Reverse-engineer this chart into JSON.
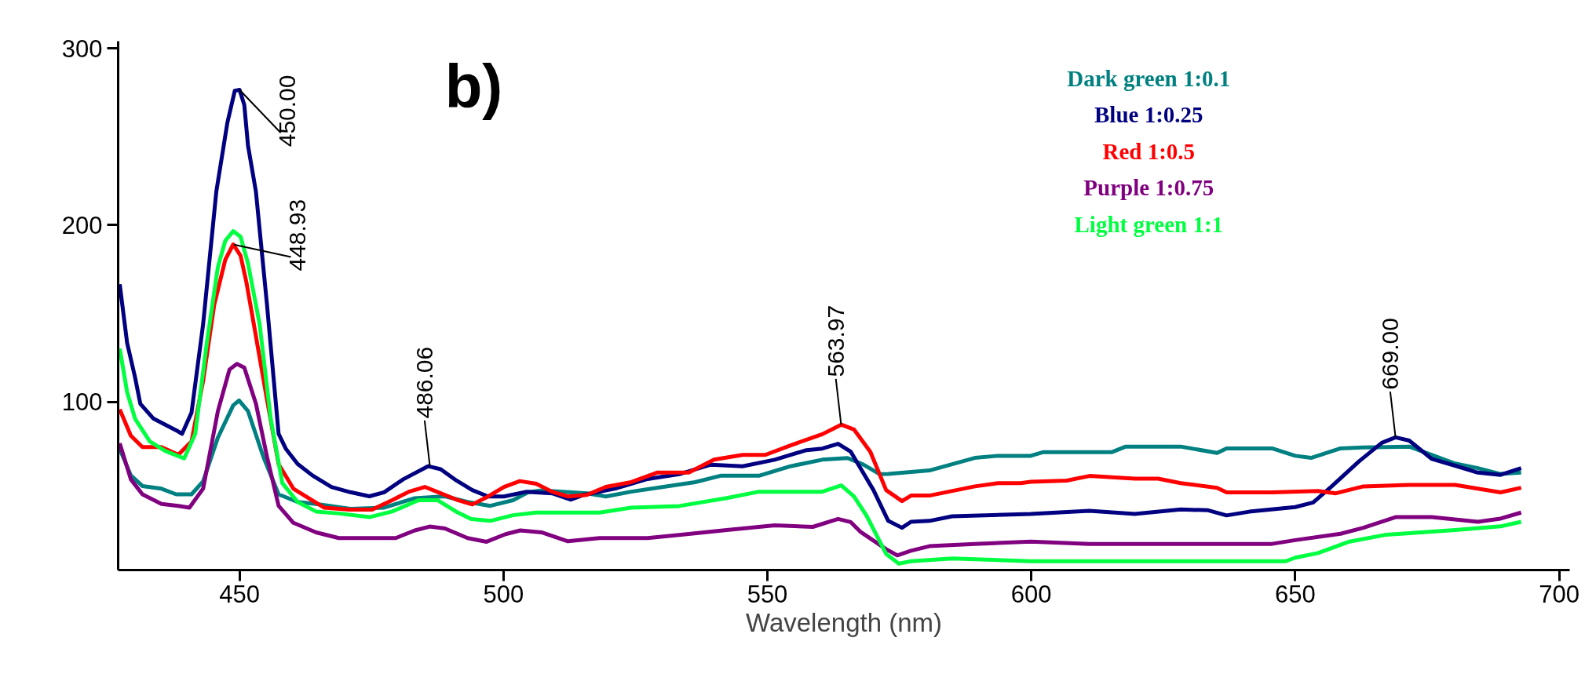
{
  "chart_data": {
    "type": "line",
    "xlabel": "Wavelength (nm)",
    "xlim": [
      427,
      702
    ],
    "ylim": [
      5,
      304
    ],
    "xticks": [
      450,
      500,
      550,
      600,
      650,
      700
    ],
    "yticks": [
      100,
      200,
      300
    ],
    "grid": false,
    "legend": "top",
    "annotations": [
      "b)",
      {
        "text": "450.00",
        "x": 450,
        "y": 276.5
      },
      {
        "text": "448.93",
        "x": 448.93,
        "y": 189
      },
      {
        "text": "486.06",
        "x": 486.06,
        "y": 63.7
      },
      {
        "text": "563.97",
        "x": 563.97,
        "y": 87.2
      },
      {
        "text": "669.00",
        "x": 669,
        "y": 80
      }
    ],
    "series": [
      {
        "name": "Dark green 1:0.1",
        "color": "#008080",
        "x": [
          427.3,
          429.4,
          431.6,
          435.2,
          438.0,
          440.9,
          443.1,
          445.9,
          448.8,
          449.9,
          451.6,
          454.5,
          457.4,
          461.0,
          464.5,
          471.0,
          477.4,
          483.2,
          488.9,
          493.2,
          497.5,
          501.8,
          504.7,
          507.2,
          515.8,
          519.4,
          524.2,
          530.3,
          536.3,
          541.1,
          548.4,
          554.4,
          560.4,
          565.2,
          568.2,
          571.3,
          572.9,
          580.7,
          589.3,
          593.7,
          599.9,
          602.3,
          615.3,
          617.9,
          628.3,
          635.2,
          637.0,
          645.6,
          650.0,
          653.0,
          658.6,
          662.9,
          671.6,
          680.3,
          684.6,
          688.9,
          692.8
        ],
        "values": [
          73.5,
          58.5,
          52.5,
          51,
          47.8,
          47.8,
          55.2,
          79.9,
          98.1,
          100.9,
          94.9,
          69.1,
          47.8,
          43.5,
          42.4,
          39.6,
          40.3,
          45.6,
          46.7,
          43.5,
          41.3,
          44.5,
          49,
          50,
          48.4,
          46.6,
          49.3,
          52,
          54.7,
          58.3,
          58.3,
          63.7,
          67.4,
          68.3,
          64.6,
          59.2,
          59.3,
          61.3,
          68.4,
          69.6,
          69.6,
          71.7,
          71.7,
          74.8,
          74.8,
          71.2,
          73.8,
          73.8,
          69.6,
          68.4,
          73.8,
          74.3,
          74.8,
          65.2,
          62.6,
          59.3,
          60.1
        ]
      },
      {
        "name": "Blue 1:0.25",
        "color": "#000080",
        "x": [
          427.3,
          428.7,
          430.2,
          431.2,
          433.7,
          438.0,
          439.1,
          440.9,
          443.1,
          445.6,
          447.7,
          449.1,
          450.0,
          450.9,
          451.6,
          453.1,
          455.2,
          457.4,
          458.8,
          461.0,
          463.8,
          467.4,
          471.0,
          474.6,
          477.4,
          481.0,
          485.7,
          488.1,
          491.1,
          494.1,
          497.1,
          500.1,
          504.4,
          509.2,
          512.8,
          515.2,
          521.2,
          527.3,
          533.3,
          539.3,
          545.3,
          551.4,
          557.4,
          560.4,
          563.4,
          565.8,
          567.6,
          570.1,
          572.9,
          575.5,
          577.2,
          580.7,
          585.0,
          599.9,
          611.0,
          619.6,
          628.3,
          633.5,
          637.0,
          641.3,
          650.0,
          653.4,
          656.9,
          662.1,
          666.4,
          669.0,
          671.6,
          675.9,
          680.3,
          684.6,
          688.9,
          692.8
        ],
        "values": [
          166.6,
          133.4,
          114,
          99,
          90.6,
          84,
          82,
          94,
          144,
          219,
          258,
          276,
          276.5,
          268,
          245,
          219,
          155,
          82,
          73.4,
          65,
          58.5,
          52,
          49,
          46.7,
          49,
          56.3,
          63.7,
          62,
          55.6,
          50.2,
          46.6,
          46.6,
          49.3,
          48.4,
          44.8,
          47.5,
          51.1,
          56.5,
          59.2,
          64.6,
          63.7,
          67.4,
          72.8,
          73.7,
          76.4,
          71.9,
          62.8,
          50.2,
          32.8,
          28.9,
          32.3,
          32.8,
          35.4,
          36.7,
          38.5,
          36.7,
          39.3,
          38.8,
          35.9,
          38.0,
          40.6,
          43.2,
          52.3,
          66.5,
          76.9,
          80.0,
          78.2,
          67.8,
          64.0,
          60.1,
          58.8,
          62.6
        ]
      },
      {
        "name": "Red 1:0.5",
        "color": "#ff0000",
        "x": [
          427.3,
          429.4,
          431.6,
          435.2,
          438.4,
          440.9,
          443.1,
          445.2,
          447.3,
          448.8,
          450.2,
          451.3,
          452.7,
          455.2,
          457.4,
          460.2,
          463.1,
          466.0,
          470.8,
          475.1,
          478.9,
          482.1,
          485.1,
          488.1,
          491.1,
          494.1,
          497.1,
          500.1,
          503.1,
          506.2,
          509.2,
          512.2,
          515.8,
          519.4,
          524.2,
          529.1,
          535.1,
          539.9,
          545.3,
          549.6,
          554.4,
          560.4,
          564.0,
          566.4,
          569.5,
          572.5,
          575.5,
          577.2,
          580.7,
          589.3,
          593.7,
          598.0,
          599.9,
          606.7,
          611.0,
          619.6,
          624.0,
          628.3,
          635.2,
          637.0,
          645.6,
          654.3,
          657.7,
          662.9,
          671.6,
          680.3,
          684.6,
          688.9,
          692.8
        ],
        "values": [
          95.9,
          81,
          74.5,
          74.5,
          70.2,
          77.7,
          112,
          154.9,
          180.5,
          189.1,
          182.7,
          167.7,
          144.1,
          101.3,
          64.9,
          51,
          45.6,
          40.3,
          39.2,
          39.2,
          44.5,
          49.3,
          52,
          48.4,
          44.8,
          42.1,
          46.6,
          52,
          55.3,
          53.8,
          49.3,
          46.6,
          47.5,
          52,
          54.7,
          60.1,
          60.1,
          67.4,
          70.1,
          70.1,
          75.5,
          81.8,
          87.2,
          84.5,
          71.9,
          50.2,
          44.0,
          47.1,
          47.1,
          52.3,
          54.1,
          54.1,
          54.9,
          55.6,
          58.2,
          56.7,
          56.7,
          54.1,
          51.5,
          48.9,
          48.9,
          49.7,
          48.4,
          52.3,
          53.1,
          53.1,
          51.0,
          48.9,
          51.5
        ]
      },
      {
        "name": "Purple 1:0.75",
        "color": "#800080",
        "x": [
          427.3,
          429.4,
          431.6,
          435.2,
          438.4,
          440.5,
          443.1,
          445.9,
          448.1,
          449.5,
          450.9,
          453.1,
          455.2,
          457.4,
          460.2,
          464.5,
          468.8,
          474.6,
          479.6,
          483.2,
          486.0,
          488.9,
          493.2,
          496.8,
          500.4,
          503.2,
          507.2,
          512.2,
          518.2,
          527.3,
          533.3,
          542.3,
          551.4,
          558.6,
          563.4,
          565.8,
          567.6,
          572.5,
          574.6,
          577.2,
          580.7,
          589.3,
          599.9,
          611.0,
          628.3,
          645.6,
          650.0,
          658.6,
          662.9,
          669.0,
          675.9,
          684.6,
          688.9,
          692.8
        ],
        "values": [
          76.7,
          56.3,
          47.8,
          42.4,
          41.3,
          40.3,
          51,
          94.9,
          118.4,
          121.6,
          119.5,
          99.1,
          69.1,
          41.3,
          31.7,
          26.3,
          23.1,
          23.1,
          23.1,
          27.4,
          29.6,
          28.5,
          23.1,
          21,
          25.3,
          27.4,
          26.3,
          21.3,
          23.1,
          23.1,
          24.9,
          27.6,
          30.3,
          29.4,
          33.9,
          32.1,
          26.7,
          16.8,
          13.3,
          15.9,
          18.5,
          19.8,
          21.1,
          19.8,
          19.8,
          19.8,
          21.9,
          25.5,
          28.9,
          34.9,
          34.9,
          32.3,
          34.1,
          37.5
        ]
      },
      {
        "name": "Light green 1:1",
        "color": "#00ff40",
        "x": [
          427.3,
          428.7,
          430.2,
          433.0,
          435.9,
          439.5,
          441.6,
          443.8,
          445.9,
          447.3,
          448.8,
          450.2,
          451.6,
          453.8,
          455.9,
          458.1,
          461.0,
          464.5,
          468.8,
          474.6,
          478.9,
          483.9,
          487.5,
          491.0,
          493.9,
          497.5,
          501.8,
          506.2,
          518.2,
          524.2,
          533.3,
          542.3,
          548.4,
          560.4,
          564.0,
          566.4,
          568.8,
          572.5,
          574.9,
          577.2,
          585.0,
          599.9,
          619.6,
          637.0,
          648.2,
          650.0,
          654.3,
          660.3,
          667.3,
          671.6,
          680.3,
          688.9,
          692.8
        ],
        "values": [
          130.2,
          105.6,
          90.6,
          77.7,
          72.4,
          68.1,
          82,
          133.4,
          176.3,
          191.2,
          196.6,
          193.4,
          178.4,
          144.1,
          90.6,
          54.2,
          43.5,
          38.1,
          37,
          34.9,
          38.1,
          44.5,
          44.5,
          38.1,
          33.8,
          32.8,
          36,
          37.5,
          37.5,
          40.3,
          41.2,
          45.7,
          49.3,
          49.3,
          52.9,
          46.6,
          35.7,
          14.1,
          8.6,
          10,
          11.5,
          10,
          10,
          10,
          10,
          12,
          14.6,
          21.1,
          25,
          25.8,
          27.6,
          29.7,
          32.3
        ]
      }
    ]
  }
}
